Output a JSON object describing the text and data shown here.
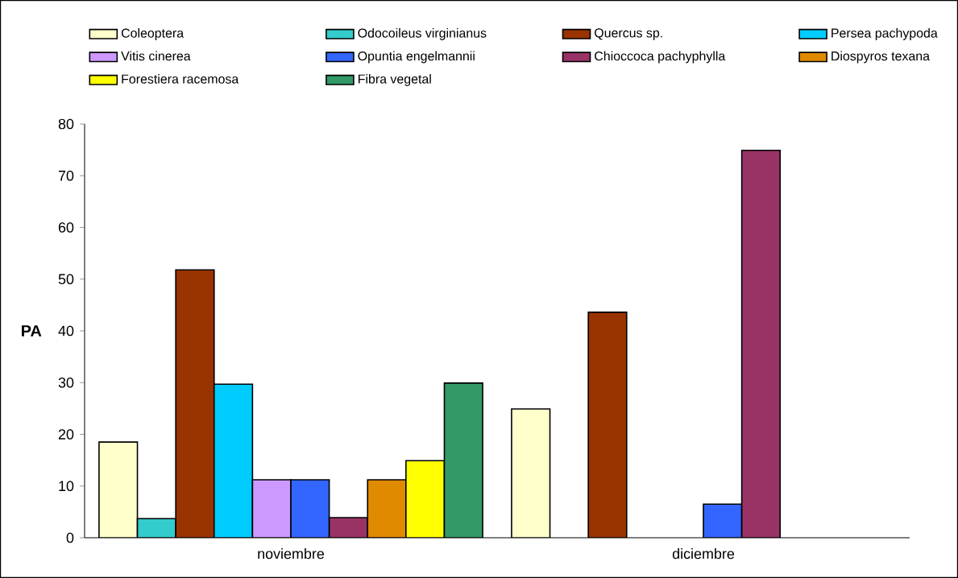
{
  "chart_data": {
    "type": "bar",
    "ylabel": "PA",
    "categories": [
      "noviembre",
      "diciembre"
    ],
    "series": [
      {
        "name": "Coleoptera",
        "color": "#ffffcc",
        "values": [
          18.5,
          24.9
        ]
      },
      {
        "name": "Odocoileus virginianus",
        "color": "#33cccc",
        "values": [
          3.7,
          null
        ]
      },
      {
        "name": "Quercus sp.",
        "color": "#993300",
        "values": [
          51.8,
          43.6
        ]
      },
      {
        "name": "Persea pachypoda",
        "color": "#00ccff",
        "values": [
          29.7,
          null
        ]
      },
      {
        "name": "Vitis cinerea",
        "color": "#cc99ff",
        "values": [
          11.2,
          null
        ]
      },
      {
        "name": "Opuntia engelmannii",
        "color": "#3366ff",
        "values": [
          11.2,
          6.5
        ]
      },
      {
        "name": "Chioccoca pachyphylla",
        "color": "#993366",
        "values": [
          3.9,
          74.9
        ]
      },
      {
        "name": "Diospyros texana",
        "color": "#e08a00",
        "values": [
          11.2,
          null
        ]
      },
      {
        "name": "Forestiera racemosa",
        "color": "#ffff00",
        "values": [
          14.9,
          null
        ]
      },
      {
        "name": "Fibra vegetal",
        "color": "#339966",
        "values": [
          29.9,
          null
        ]
      }
    ],
    "ylim": [
      0,
      80
    ],
    "yticks": [
      0,
      10,
      20,
      30,
      40,
      50,
      60,
      70,
      80
    ],
    "grid": false,
    "legend": "top"
  }
}
